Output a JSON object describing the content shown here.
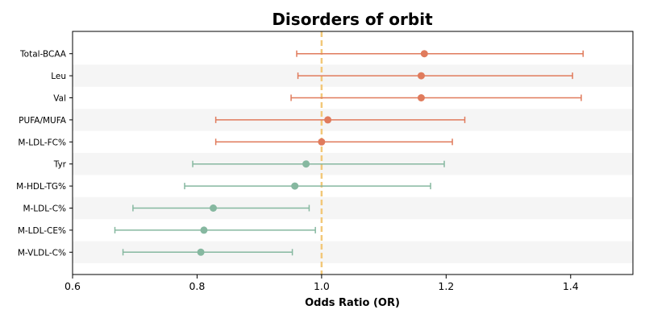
{
  "chart_data": {
    "type": "forest",
    "title": "Disorders of orbit",
    "xlabel": "Odds Ratio (OR)",
    "ylabel": "",
    "xlim": [
      0.6,
      1.5
    ],
    "xticks": [
      "0.6",
      "0.8",
      "1.0",
      "1.2",
      "1.4"
    ],
    "reference_line": 1.0,
    "grid": false,
    "banded_rows": true,
    "colors": {
      "risk": "#e07b5c",
      "protective": "#86b8a0",
      "reference_line": "#f2c879",
      "band": "#f5f5f5"
    },
    "rows": [
      {
        "label": "Total-BCAA",
        "or": 1.165,
        "ci_low": 0.96,
        "ci_high": 1.42,
        "group": "risk"
      },
      {
        "label": "Leu",
        "or": 1.16,
        "ci_low": 0.962,
        "ci_high": 1.403,
        "group": "risk"
      },
      {
        "label": "Val",
        "or": 1.16,
        "ci_low": 0.951,
        "ci_high": 1.417,
        "group": "risk"
      },
      {
        "label": "PUFA/MUFA",
        "or": 1.01,
        "ci_low": 0.83,
        "ci_high": 1.23,
        "group": "risk"
      },
      {
        "label": "M-LDL-FC%",
        "or": 1.0,
        "ci_low": 0.83,
        "ci_high": 1.21,
        "group": "risk"
      },
      {
        "label": "Tyr",
        "or": 0.975,
        "ci_low": 0.793,
        "ci_high": 1.197,
        "group": "protective"
      },
      {
        "label": "M-HDL-TG%",
        "or": 0.957,
        "ci_low": 0.78,
        "ci_high": 1.175,
        "group": "protective"
      },
      {
        "label": "M-LDL-C%",
        "or": 0.826,
        "ci_low": 0.697,
        "ci_high": 0.98,
        "group": "protective"
      },
      {
        "label": "M-LDL-CE%",
        "or": 0.811,
        "ci_low": 0.668,
        "ci_high": 0.99,
        "group": "protective"
      },
      {
        "label": "M-VLDL-C%",
        "or": 0.806,
        "ci_low": 0.681,
        "ci_high": 0.953,
        "group": "protective"
      }
    ]
  }
}
